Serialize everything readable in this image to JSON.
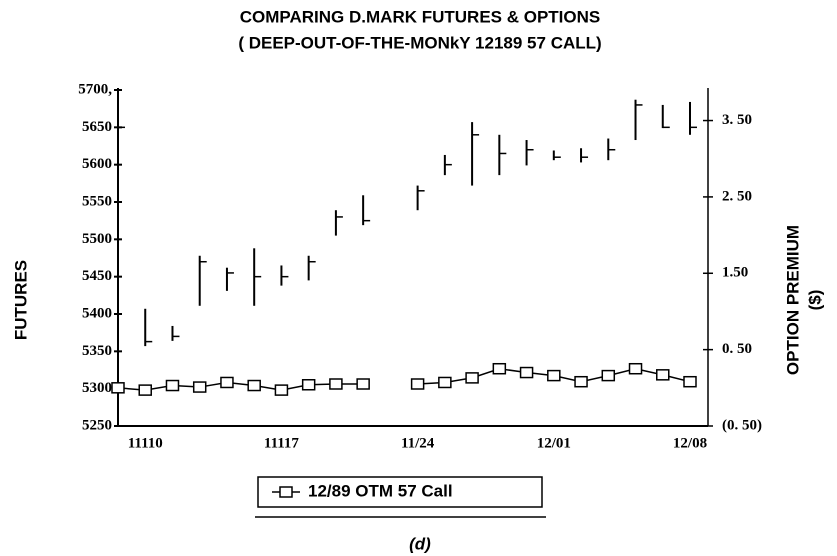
{
  "chart_data": {
    "type": "ohlc",
    "title": "COMPARING D.MARK FUTURES & OPTIONS",
    "subtitle": "( DEEP-OUT-OF-THE-MONkY 12189 57 CALL)",
    "ylabel": "FUTURES",
    "y2label": [
      "OPTION PREMIUM",
      "($)"
    ],
    "caption": "(d)",
    "categories": [
      null,
      "11110",
      null,
      null,
      null,
      null,
      "11117",
      null,
      null,
      null,
      null,
      "11/24",
      null,
      null,
      null,
      null,
      "12/01",
      null,
      null,
      null,
      null,
      "12/08"
    ],
    "ohlc": {
      "color": "#000000",
      "high": [
        5700,
        5407,
        5384,
        5478,
        5462,
        5488,
        5465,
        5478,
        5539,
        5559,
        null,
        5572,
        5613,
        5657,
        5640,
        5633,
        5619,
        5622,
        5635,
        5687,
        5680,
        5684
      ],
      "low": [
        5646,
        5357,
        5364,
        5411,
        5431,
        5411,
        5438,
        5445,
        5505,
        5519,
        null,
        5539,
        5586,
        5572,
        5586,
        5599,
        5606,
        5603,
        5606,
        5633,
        5649,
        5640
      ],
      "close": [
        5650,
        5363,
        5370,
        5470,
        5455,
        5450,
        5450,
        5470,
        5530,
        5525,
        null,
        5565,
        5600,
        5640,
        5615,
        5620,
        5610,
        5610,
        5620,
        5680,
        5650,
        5650
      ]
    },
    "series": [
      {
        "name": "12/89 OTM 57 Call",
        "color": "#000000",
        "axis": "y2",
        "values": [
          0.0,
          -0.03,
          0.03,
          0.01,
          0.07,
          0.03,
          -0.03,
          0.04,
          0.05,
          0.05,
          null,
          0.05,
          0.07,
          0.13,
          0.25,
          0.2,
          0.16,
          0.08,
          0.16,
          0.25,
          0.17,
          0.08
        ]
      }
    ],
    "ylim": [
      5250,
      5700
    ],
    "yticks": [
      5250,
      5300,
      5350,
      5400,
      5450,
      5500,
      5550,
      5600,
      5650,
      {
        "value": 5700,
        "label": "5700,"
      }
    ],
    "y2lim": [
      -0.5,
      3.9
    ],
    "y2ticks": [
      {
        "value": -0.5,
        "label": "(0. 50)"
      },
      {
        "value": 0.5,
        "label": "0. 50"
      },
      {
        "value": 1.5,
        "label": "1.50"
      },
      {
        "value": 2.5,
        "label": "2. 50"
      },
      {
        "value": 3.5,
        "label": "3. 50"
      }
    ],
    "grid": false,
    "legend": "bottom"
  }
}
